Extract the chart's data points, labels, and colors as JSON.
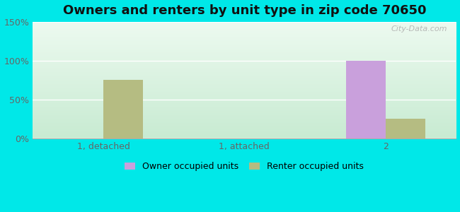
{
  "title": "Owners and renters by unit type in zip code 70650",
  "categories": [
    "1, detached",
    "1, attached",
    "2"
  ],
  "owner_values": [
    0,
    0,
    100
  ],
  "renter_values": [
    75,
    0,
    25
  ],
  "owner_color": "#c9a0dc",
  "renter_color": "#b5bc82",
  "ylim": [
    0,
    150
  ],
  "yticks": [
    0,
    50,
    100,
    150
  ],
  "ytick_labels": [
    "0%",
    "50%",
    "100%",
    "150%"
  ],
  "bar_width": 0.28,
  "background_outer": "#00e8e8",
  "legend_owner": "Owner occupied units",
  "legend_renter": "Renter occupied units",
  "watermark": "City-Data.com",
  "title_fontsize": 13,
  "tick_fontsize": 9,
  "legend_fontsize": 9,
  "grid_color": "#e8e8e8"
}
